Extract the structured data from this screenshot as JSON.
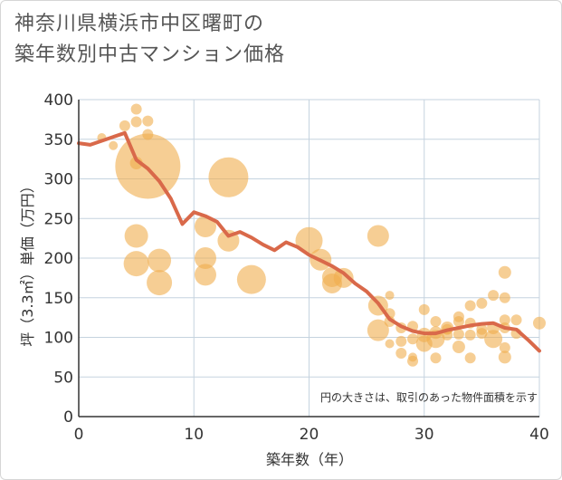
{
  "title": {
    "line1": "神奈川県横浜市中区曙町の",
    "line2": "築年数別中古マンション価格"
  },
  "colors": {
    "bubble": "#f0ae4c",
    "line": "#d9694a",
    "grid": "#c5d3df",
    "axis": "#333333"
  },
  "chart_data": {
    "type": "scatter",
    "title": "神奈川県横浜市中区曙町の築年数別中古マンション価格",
    "xlabel": "築年数（年）",
    "ylabel": "坪（3.3㎡）単価（万円）",
    "xlim": [
      0,
      40
    ],
    "ylim": [
      0,
      400
    ],
    "xticks": [
      0,
      10,
      20,
      30,
      40
    ],
    "yticks": [
      0,
      50,
      100,
      150,
      200,
      250,
      300,
      350,
      400
    ],
    "grid": true,
    "note": "円の大きさは、取引のあった物件面積を示す",
    "series": [
      {
        "type": "bubble",
        "points": [
          {
            "x": 2,
            "y": 352,
            "s": 5
          },
          {
            "x": 3,
            "y": 342,
            "s": 5
          },
          {
            "x": 4,
            "y": 367,
            "s": 6
          },
          {
            "x": 5,
            "y": 388,
            "s": 6
          },
          {
            "x": 5,
            "y": 372,
            "s": 6
          },
          {
            "x": 6,
            "y": 373,
            "s": 6
          },
          {
            "x": 6,
            "y": 356,
            "s": 6
          },
          {
            "x": 5,
            "y": 320,
            "s": 7
          },
          {
            "x": 6,
            "y": 316,
            "s": 36
          },
          {
            "x": 13,
            "y": 302,
            "s": 22
          },
          {
            "x": 5,
            "y": 228,
            "s": 13
          },
          {
            "x": 5,
            "y": 193,
            "s": 14
          },
          {
            "x": 7,
            "y": 197,
            "s": 13
          },
          {
            "x": 7,
            "y": 169,
            "s": 14
          },
          {
            "x": 11,
            "y": 240,
            "s": 12
          },
          {
            "x": 11,
            "y": 200,
            "s": 12
          },
          {
            "x": 11,
            "y": 179,
            "s": 12
          },
          {
            "x": 13,
            "y": 222,
            "s": 12
          },
          {
            "x": 15,
            "y": 173,
            "s": 16
          },
          {
            "x": 20,
            "y": 222,
            "s": 15
          },
          {
            "x": 21,
            "y": 198,
            "s": 12
          },
          {
            "x": 22,
            "y": 176,
            "s": 11
          },
          {
            "x": 22,
            "y": 168,
            "s": 11
          },
          {
            "x": 23,
            "y": 175,
            "s": 11
          },
          {
            "x": 26,
            "y": 228,
            "s": 12
          },
          {
            "x": 26,
            "y": 140,
            "s": 11
          },
          {
            "x": 26,
            "y": 109,
            "s": 12
          },
          {
            "x": 27,
            "y": 153,
            "s": 5
          },
          {
            "x": 27,
            "y": 130,
            "s": 6
          },
          {
            "x": 27,
            "y": 120,
            "s": 6
          },
          {
            "x": 28,
            "y": 112,
            "s": 6
          },
          {
            "x": 28,
            "y": 95,
            "s": 6
          },
          {
            "x": 28,
            "y": 80,
            "s": 6
          },
          {
            "x": 27,
            "y": 92,
            "s": 5
          },
          {
            "x": 29,
            "y": 114,
            "s": 6
          },
          {
            "x": 29,
            "y": 98,
            "s": 6
          },
          {
            "x": 29,
            "y": 70,
            "s": 6
          },
          {
            "x": 29,
            "y": 75,
            "s": 5
          },
          {
            "x": 30,
            "y": 135,
            "s": 6
          },
          {
            "x": 30,
            "y": 103,
            "s": 8
          },
          {
            "x": 30,
            "y": 92,
            "s": 9
          },
          {
            "x": 31,
            "y": 120,
            "s": 6
          },
          {
            "x": 31,
            "y": 106,
            "s": 7
          },
          {
            "x": 31,
            "y": 98,
            "s": 10
          },
          {
            "x": 31,
            "y": 74,
            "s": 6
          },
          {
            "x": 32,
            "y": 112,
            "s": 7
          },
          {
            "x": 32,
            "y": 103,
            "s": 6
          },
          {
            "x": 32,
            "y": 110,
            "s": 6
          },
          {
            "x": 33,
            "y": 126,
            "s": 6
          },
          {
            "x": 33,
            "y": 120,
            "s": 6
          },
          {
            "x": 33,
            "y": 104,
            "s": 6
          },
          {
            "x": 33,
            "y": 88,
            "s": 7
          },
          {
            "x": 34,
            "y": 140,
            "s": 6
          },
          {
            "x": 34,
            "y": 118,
            "s": 6
          },
          {
            "x": 34,
            "y": 103,
            "s": 6
          },
          {
            "x": 34,
            "y": 74,
            "s": 6
          },
          {
            "x": 35,
            "y": 143,
            "s": 6
          },
          {
            "x": 35,
            "y": 110,
            "s": 6
          },
          {
            "x": 35,
            "y": 105,
            "s": 6
          },
          {
            "x": 36,
            "y": 153,
            "s": 6
          },
          {
            "x": 36,
            "y": 112,
            "s": 7
          },
          {
            "x": 36,
            "y": 98,
            "s": 10
          },
          {
            "x": 37,
            "y": 182,
            "s": 7
          },
          {
            "x": 37,
            "y": 150,
            "s": 6
          },
          {
            "x": 37,
            "y": 122,
            "s": 6
          },
          {
            "x": 37,
            "y": 112,
            "s": 6
          },
          {
            "x": 37,
            "y": 87,
            "s": 6
          },
          {
            "x": 37,
            "y": 75,
            "s": 7
          },
          {
            "x": 38,
            "y": 122,
            "s": 6
          },
          {
            "x": 38,
            "y": 105,
            "s": 6
          },
          {
            "x": 40,
            "y": 118,
            "s": 7
          }
        ]
      },
      {
        "type": "line",
        "x": [
          0,
          1,
          2,
          3,
          4,
          5,
          6,
          7,
          8,
          9,
          10,
          11,
          12,
          13,
          14,
          15,
          16,
          17,
          18,
          19,
          20,
          21,
          22,
          23,
          24,
          25,
          26,
          27,
          28,
          29,
          30,
          31,
          32,
          33,
          34,
          35,
          36,
          37,
          38,
          39,
          40
        ],
        "y": [
          345,
          343,
          348,
          353,
          358,
          324,
          313,
          297,
          275,
          243,
          258,
          253,
          246,
          228,
          233,
          226,
          217,
          210,
          220,
          214,
          204,
          197,
          190,
          181,
          168,
          158,
          143,
          123,
          114,
          108,
          105,
          105,
          109,
          112,
          115,
          117,
          118,
          112,
          110,
          97,
          83
        ]
      }
    ]
  }
}
